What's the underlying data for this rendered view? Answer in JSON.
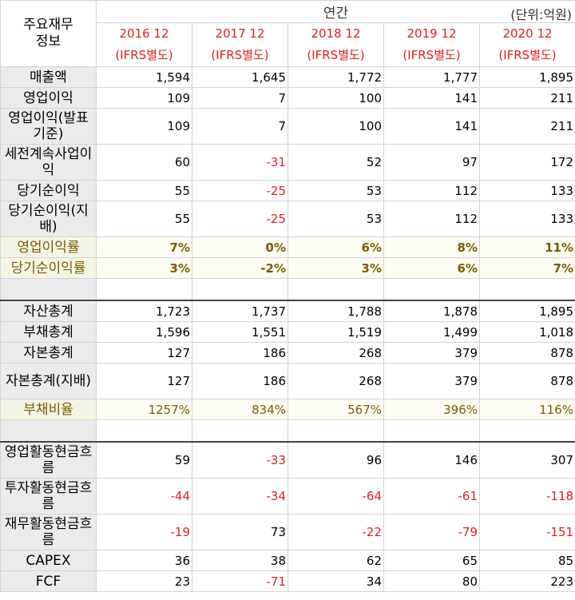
{
  "header": {
    "corner_label": "주요재무\n정보",
    "annual_label": "연간",
    "unit_label": "(단위:억원)",
    "years": [
      {
        "period": "2016 12",
        "basis": "(IFRS별도)"
      },
      {
        "period": "2017 12",
        "basis": "(IFRS별도)"
      },
      {
        "period": "2018 12",
        "basis": "(IFRS별도)"
      },
      {
        "period": "2019 12",
        "basis": "(IFRS별도)"
      },
      {
        "period": "2020 12",
        "basis": "(IFRS별도)"
      }
    ]
  },
  "rows": [
    {
      "label": "매출액",
      "values": [
        "1,594",
        "1,645",
        "1,772",
        "1,777",
        "1,895"
      ]
    },
    {
      "label": "영업이익",
      "values": [
        "109",
        "7",
        "100",
        "141",
        "211"
      ]
    },
    {
      "label": "영업이익(발표기준)",
      "values": [
        "109",
        "7",
        "100",
        "141",
        "211"
      ]
    },
    {
      "label": "세전계속사업이익",
      "values": [
        "60",
        "-31",
        "52",
        "97",
        "172"
      ]
    },
    {
      "label": "당기순이익",
      "values": [
        "55",
        "-25",
        "53",
        "112",
        "133"
      ]
    },
    {
      "label": "당기순이익(지배)",
      "values": [
        "55",
        "-25",
        "53",
        "112",
        "133"
      ]
    },
    {
      "label": "영업이익률",
      "values": [
        "7%",
        "0%",
        "6%",
        "8%",
        "11%"
      ]
    },
    {
      "label": "당기순이익률",
      "values": [
        "3%",
        "-2%",
        "3%",
        "6%",
        "7%"
      ]
    },
    {
      "label": "자산총계",
      "values": [
        "1,723",
        "1,737",
        "1,788",
        "1,878",
        "1,895"
      ]
    },
    {
      "label": "부채총계",
      "values": [
        "1,596",
        "1,551",
        "1,519",
        "1,499",
        "1,018"
      ]
    },
    {
      "label": "자본총계",
      "values": [
        "127",
        "186",
        "268",
        "379",
        "878"
      ]
    },
    {
      "label": "자본총계(지배)",
      "values": [
        "127",
        "186",
        "268",
        "379",
        "878"
      ]
    },
    {
      "label": "부채비율",
      "values": [
        "1257%",
        "834%",
        "567%",
        "396%",
        "116%"
      ]
    },
    {
      "label": "영업활동현금흐름",
      "values": [
        "59",
        "-33",
        "96",
        "146",
        "307"
      ]
    },
    {
      "label": "투자활동현금흐름",
      "values": [
        "-44",
        "-34",
        "-64",
        "-61",
        "-118"
      ]
    },
    {
      "label": "재무활동현금흐름",
      "values": [
        "-19",
        "73",
        "-22",
        "-79",
        "-151"
      ]
    },
    {
      "label": "CAPEX",
      "values": [
        "36",
        "38",
        "62",
        "65",
        "85"
      ]
    },
    {
      "label": "FCF",
      "values": [
        "23",
        "-71",
        "34",
        "80",
        "223"
      ]
    }
  ]
}
